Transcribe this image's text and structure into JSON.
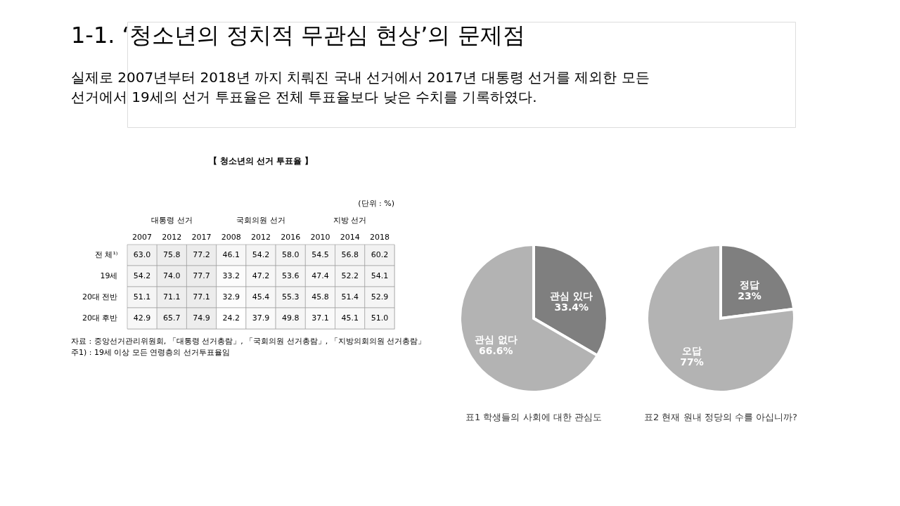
{
  "chart_data": [
    {
      "type": "other",
      "title": "1-1. ‘청소년의 정치적 무관심 현상’의 문제점",
      "subtitle": "실제로 2007년부터 2018년 까지 치뤄진 국내 선거에서 2017년 대통령 선거를 제외한 모든\n선거에서 19세의 선거 투표율은 전체 투표율보다 낮은 수치를 기록하였다."
    },
    {
      "type": "heatmap",
      "title": "【 청소년의 선거 투표율 】",
      "subtitle": "(단위 : %)",
      "categories": [
        "2007",
        "2012",
        "2017",
        "2008",
        "2012",
        "2016",
        "2010",
        "2014",
        "2018"
      ],
      "y_categories": [
        "전 체¹⁾",
        "19세",
        "20대 전반",
        "20대 후반"
      ],
      "cells": [
        [
          63.0,
          75.8,
          77.2,
          46.1,
          54.2,
          58.0,
          54.5,
          56.8,
          60.2
        ],
        [
          54.2,
          74.0,
          77.7,
          33.2,
          47.2,
          53.6,
          47.4,
          52.2,
          54.1
        ],
        [
          51.1,
          71.1,
          77.1,
          32.9,
          45.4,
          55.3,
          45.8,
          51.4,
          52.9
        ],
        [
          42.9,
          65.7,
          74.9,
          24.2,
          37.9,
          49.8,
          37.1,
          45.1,
          51.0
        ]
      ],
      "cell_labels": [
        [
          "63.0",
          "75.8",
          "77.2",
          "46.1",
          "54.2",
          "58.0",
          "54.5",
          "56.8",
          "60.2"
        ],
        [
          "54.2",
          "74.0",
          "77.7",
          "33.2",
          "47.2",
          "53.6",
          "47.4",
          "52.2",
          "54.1"
        ],
        [
          "51.1",
          "71.1",
          "77.1",
          "32.9",
          "45.4",
          "55.3",
          "45.8",
          "51.4",
          "52.9"
        ],
        [
          "42.9",
          "65.7",
          "74.9",
          "24.2",
          "37.9",
          "49.8",
          "37.1",
          "45.1",
          "51.0"
        ]
      ],
      "annotations": [
        "대통령 선거",
        "국회의원 선거",
        "지방 선거",
        "자료 : 중앙선거관리위원회, 「대통령 선거총람」, 「국회의원 선거총람」, 「지방의회의원 선거총람」",
        "주1) : 19세 이상 모든 연령층의 선거투표율임"
      ]
    },
    {
      "type": "pie",
      "title": "표1 학생들의 사회에 대한 관심도",
      "categories": [
        "관심 있다",
        "관심 없다"
      ],
      "values": [
        33.4,
        66.6
      ],
      "value_labels": [
        "33.4%",
        "66.6%"
      ],
      "colors": [
        "#7f7f7f",
        "#b3b3b3"
      ]
    },
    {
      "type": "pie",
      "title": "표2 현재 원내 정당의 수를 아십니까?",
      "categories": [
        "정답",
        "오답"
      ],
      "values": [
        23,
        77
      ],
      "value_labels": [
        "23%",
        "77%"
      ],
      "colors": [
        "#7f7f7f",
        "#b3b3b3"
      ]
    }
  ]
}
